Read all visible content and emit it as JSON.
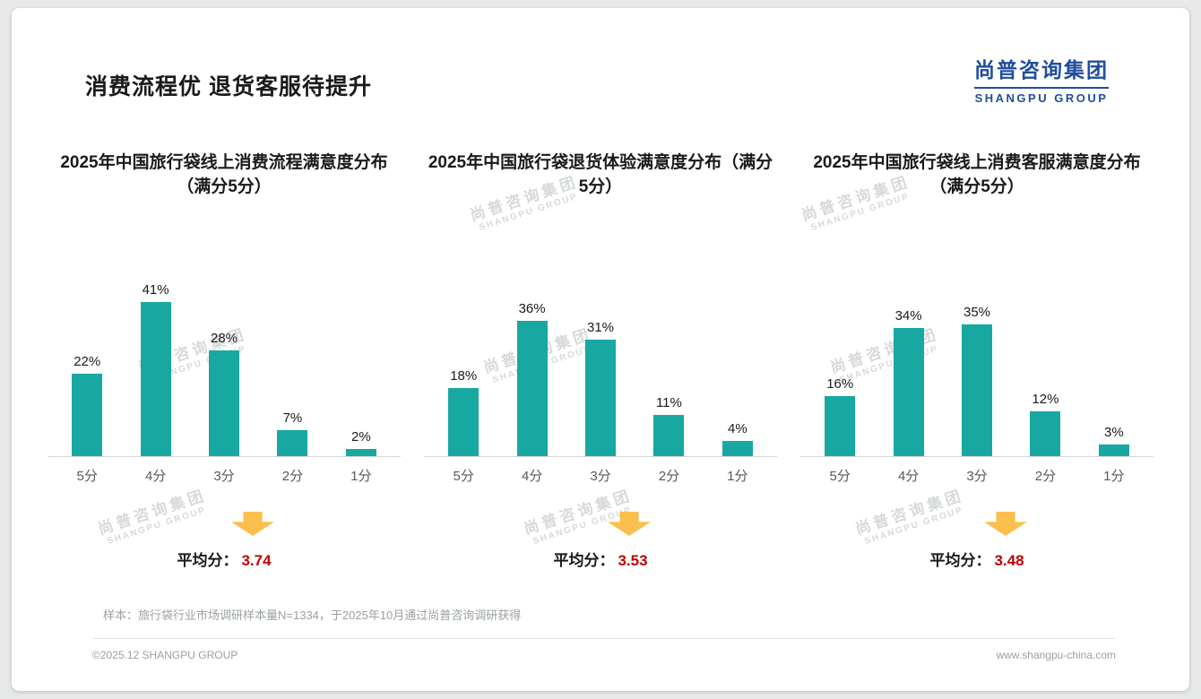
{
  "page": {
    "title": "消费流程优 退货客服待提升",
    "logo": {
      "cn": "尚普咨询集团",
      "en": "SHANGPU GROUP"
    },
    "watermark": {
      "cn": "尚普咨询集团",
      "en": "SHANGPU GROUP"
    },
    "average_prefix": "平均分：",
    "footnote": "样本：旅行袋行业市场调研样本量N=1334，于2025年10月通过尚普咨询调研获得",
    "footer_left": "©2025.12 SHANGPU GROUP",
    "footer_right": "www.shangpu-china.com"
  },
  "colors": {
    "bar": "#18a8a2",
    "arrow": "#fbbf4e",
    "average": "#c00000",
    "logo_blue": "#1f4e9c"
  },
  "chart_data": [
    {
      "type": "bar",
      "title": "2025年中国旅行袋线上消费流程满意度分布（满分5分）",
      "categories": [
        "5分",
        "4分",
        "3分",
        "2分",
        "1分"
      ],
      "values": [
        22,
        41,
        28,
        7,
        2
      ],
      "unit": "%",
      "ylim": [
        0,
        45
      ],
      "grid": false,
      "data_labels": true,
      "average": "3.74"
    },
    {
      "type": "bar",
      "title": "2025年中国旅行袋退货体验满意度分布（满分5分）",
      "categories": [
        "5分",
        "4分",
        "3分",
        "2分",
        "1分"
      ],
      "values": [
        18,
        36,
        31,
        11,
        4
      ],
      "unit": "%",
      "ylim": [
        0,
        45
      ],
      "grid": false,
      "data_labels": true,
      "average": "3.53"
    },
    {
      "type": "bar",
      "title": "2025年中国旅行袋线上消费客服满意度分布（满分5分）",
      "categories": [
        "5分",
        "4分",
        "3分",
        "2分",
        "1分"
      ],
      "values": [
        16,
        34,
        35,
        12,
        3
      ],
      "unit": "%",
      "ylim": [
        0,
        45
      ],
      "grid": false,
      "data_labels": true,
      "average": "3.48"
    }
  ]
}
